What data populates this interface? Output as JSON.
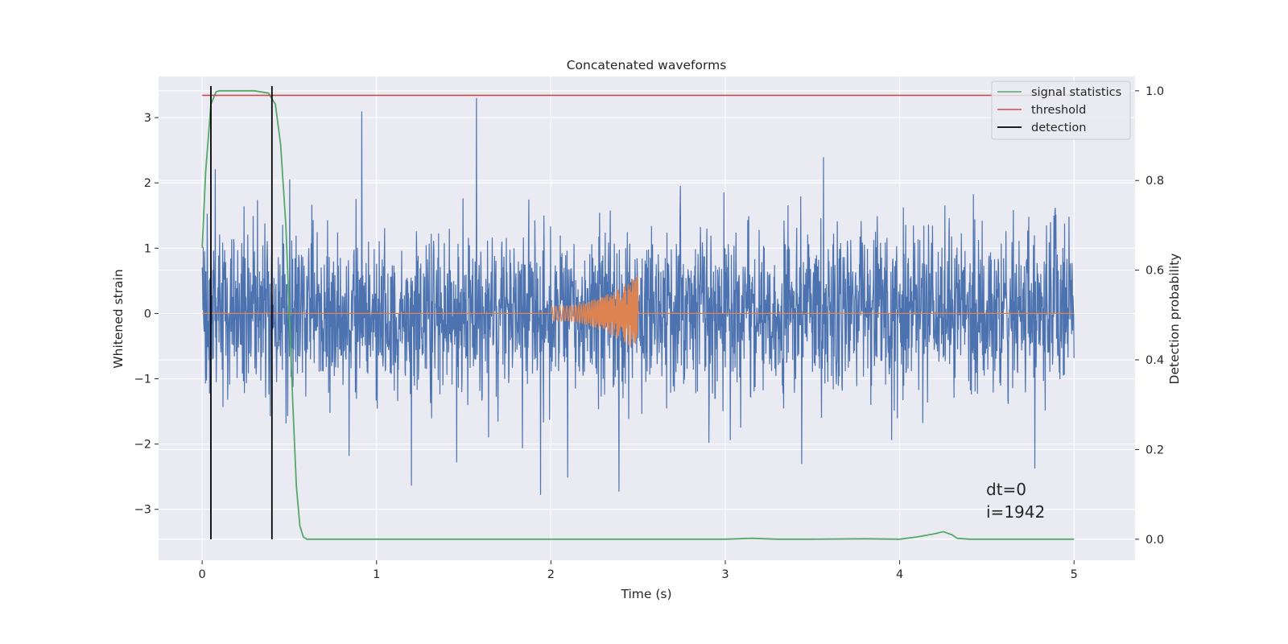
{
  "chart_data": {
    "type": "line",
    "title": "Concatenated waveforms",
    "xlabel": "Time (s)",
    "ylabel": "Whitened strain",
    "y2label": "Detection probability",
    "xlim": [
      -0.25,
      5.35
    ],
    "ylim": [
      -3.78,
      3.63
    ],
    "y2lim": [
      -0.047,
      1.032
    ],
    "xticks": [
      0,
      1,
      2,
      3,
      4,
      5
    ],
    "yticks": [
      -3,
      -2,
      -1,
      0,
      1,
      2,
      3
    ],
    "y2ticks": [
      0.0,
      0.2,
      0.4,
      0.6,
      0.8,
      1.0
    ],
    "xtick_labels": [
      "0",
      "1",
      "2",
      "3",
      "4",
      "5"
    ],
    "ytick_labels": [
      "−3",
      "−2",
      "−1",
      "0",
      "1",
      "2",
      "3"
    ],
    "y2tick_labels": [
      "0.0",
      "0.2",
      "0.4",
      "0.6",
      "0.8",
      "1.0"
    ],
    "grid": true,
    "legend_position": "top-right",
    "colors": {
      "strain": "#4c72b0",
      "waveform": "#dd8452",
      "signal_statistics": "#55a868",
      "threshold": "#c44e52",
      "detection": "#000000",
      "background": "#eaeaf2",
      "grid": "#ffffff"
    },
    "series": [
      {
        "key": "strain",
        "axis": "left",
        "description": "noisy whitened strain",
        "x_range": [
          0,
          5
        ],
        "amplitude_envelope": [
          -3.5,
          3.3
        ]
      },
      {
        "key": "waveform",
        "axis": "left",
        "description": "injected chirp waveform",
        "x_start": 2.0,
        "x_end": 2.5,
        "peak_amplitude": 0.6
      },
      {
        "name": "signal statistics",
        "axis": "right",
        "x": [
          0,
          0.02,
          0.05,
          0.08,
          0.1,
          0.2,
          0.3,
          0.38,
          0.42,
          0.45,
          0.48,
          0.5,
          0.52,
          0.54,
          0.56,
          0.58,
          0.6,
          1.0,
          2.0,
          3.0,
          3.15,
          3.3,
          3.5,
          3.8,
          4.0,
          4.1,
          4.2,
          4.25,
          4.3,
          4.33,
          4.4,
          5.0
        ],
        "y": [
          0.65,
          0.82,
          0.97,
          0.998,
          1.0,
          1.0,
          1.0,
          0.995,
          0.97,
          0.88,
          0.7,
          0.5,
          0.3,
          0.12,
          0.03,
          0.005,
          0.0,
          0.0,
          0.0,
          0.0,
          0.002,
          0.0,
          0.0,
          0.001,
          0.0,
          0.005,
          0.012,
          0.017,
          0.01,
          0.002,
          0.0,
          0.0
        ]
      },
      {
        "name": "threshold",
        "axis": "right",
        "x": [
          0,
          5
        ],
        "y": [
          0.99,
          0.99
        ]
      },
      {
        "name": "detection",
        "axis": "right",
        "x_positions": [
          0.05,
          0.4
        ],
        "y_range": [
          0.0,
          1.0
        ]
      }
    ],
    "annotations": [
      "dt=0",
      "i=1942"
    ]
  }
}
